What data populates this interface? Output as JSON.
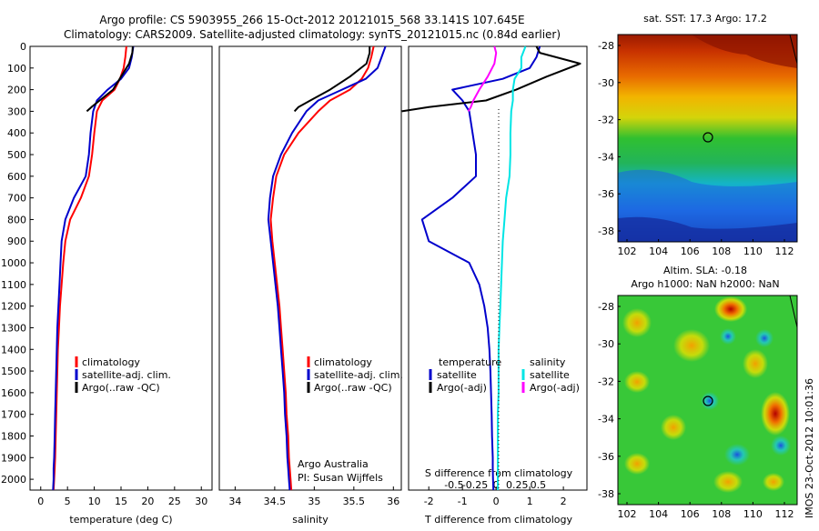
{
  "title": {
    "line1": "Argo profile: CS 5903955_266 15-Oct-2012 20121015_568 33.141S 107.645E",
    "line2": "Climatology: CARS2009. Satellite-adjusted climatology: synTS_20121015.nc (0.84d earlier)"
  },
  "depth_ticks": [
    0,
    100,
    200,
    300,
    400,
    500,
    600,
    700,
    800,
    900,
    1000,
    1100,
    1200,
    1300,
    1400,
    1500,
    1600,
    1700,
    1800,
    1900,
    2000
  ],
  "colors": {
    "climatology": "#ff0000",
    "satellite": "#0000cc",
    "argo": "#000000",
    "sal_sat": "#00e5e5",
    "sal_argo": "#ff00ff"
  },
  "temperature_panel": {
    "xlabel": "temperature (deg C)",
    "xticks": [
      0,
      5,
      10,
      15,
      20,
      25,
      30
    ],
    "legend": [
      "climatology",
      "satellite-adj. clim.",
      "Argo(..raw -QC)"
    ]
  },
  "salinity_panel": {
    "xlabel": "salinity",
    "xticks": [
      "34",
      "34.5",
      "35",
      "35.5",
      "36"
    ],
    "legend": [
      "climatology",
      "satellite-adj. clim.",
      "Argo(..raw -QC)"
    ],
    "note1": "Argo Australia",
    "note2": "PI: Susan Wijffels"
  },
  "diff_panel": {
    "xlabel": "T difference from climatology",
    "top_label": "S difference from climatology",
    "t_ticks": [
      "-2",
      "-1",
      "0",
      "1",
      "2"
    ],
    "s_ticks": [
      "-0.5",
      "-0.25",
      "0",
      "0.25",
      "0.5"
    ],
    "legend_t_title": "temperature",
    "legend_t": [
      "satellite",
      "Argo(-adj)"
    ],
    "legend_s_title": "salinity",
    "legend_s": [
      "satellite",
      "Argo(-adj)"
    ]
  },
  "map_sst": {
    "title": "sat. SST: 17.3 Argo: 17.2",
    "yticks": [
      "-28",
      "-30",
      "-32",
      "-34",
      "-36",
      "-38"
    ],
    "xticks": [
      "102",
      "104",
      "106",
      "108",
      "110",
      "112"
    ]
  },
  "map_sla": {
    "title1": "Altim. SLA: -0.18",
    "title2": "Argo h1000: NaN h2000: NaN",
    "yticks": [
      "-28",
      "-30",
      "-32",
      "-34",
      "-36",
      "-38"
    ],
    "xticks": [
      "102",
      "104",
      "106",
      "108",
      "110",
      "112"
    ]
  },
  "footer": "IMOS 23-Oct-2012 10:01:36",
  "chart_data": [
    {
      "type": "line",
      "title": "",
      "xlabel": "temperature (deg C)",
      "ylabel": "",
      "xlim": [
        -2,
        32
      ],
      "ylim": [
        2050,
        0
      ],
      "series": [
        {
          "name": "climatology",
          "x": [
            16.0,
            15.8,
            15.5,
            14.8,
            13.8,
            11.5,
            10.5,
            10.0,
            9.6,
            9.0,
            7.5,
            5.5,
            4.6,
            4.2,
            3.9,
            3.6,
            3.4,
            3.2,
            3.1,
            3.0,
            2.9,
            2.8,
            2.7,
            2.6,
            2.5,
            2.4
          ],
          "y": [
            0,
            50,
            100,
            150,
            200,
            250,
            300,
            400,
            500,
            600,
            700,
            800,
            900,
            1000,
            1100,
            1200,
            1300,
            1400,
            1500,
            1600,
            1700,
            1800,
            1900,
            1950,
            2000,
            2050
          ]
        },
        {
          "name": "satellite-adj. clim.",
          "x": [
            17.3,
            17.0,
            16.5,
            15.0,
            12.5,
            10.5,
            9.8,
            9.3,
            9.0,
            8.4,
            6.2,
            4.6,
            3.9,
            3.7,
            3.5,
            3.3,
            3.1,
            3.0,
            2.9,
            2.8,
            2.7,
            2.6,
            2.5,
            2.4,
            2.4,
            2.3
          ],
          "y": [
            0,
            50,
            100,
            150,
            200,
            250,
            300,
            400,
            500,
            600,
            700,
            800,
            900,
            1000,
            1100,
            1200,
            1300,
            1400,
            1500,
            1600,
            1700,
            1800,
            1900,
            1950,
            2000,
            2050
          ]
        },
        {
          "name": "Argo(..raw -QC)",
          "x": [
            17.2,
            17.1,
            16.5,
            15.0,
            13.5,
            11.0,
            9.5,
            8.6
          ],
          "y": [
            0,
            30,
            80,
            140,
            200,
            250,
            280,
            300
          ]
        }
      ]
    },
    {
      "type": "line",
      "title": "",
      "xlabel": "salinity",
      "ylabel": "",
      "xlim": [
        33.8,
        36.1
      ],
      "ylim": [
        2050,
        0
      ],
      "series": [
        {
          "name": "climatology",
          "x": [
            35.75,
            35.72,
            35.68,
            35.6,
            35.45,
            35.2,
            35.05,
            34.8,
            34.62,
            34.52,
            34.48,
            34.45,
            34.47,
            34.5,
            34.53,
            34.56,
            34.58,
            34.6,
            34.62,
            34.64,
            34.65,
            34.67,
            34.68,
            34.69,
            34.7,
            34.71
          ],
          "y": [
            0,
            50,
            100,
            150,
            200,
            250,
            300,
            400,
            500,
            600,
            700,
            800,
            900,
            1000,
            1100,
            1200,
            1300,
            1400,
            1500,
            1600,
            1700,
            1800,
            1900,
            1950,
            2000,
            2050
          ]
        },
        {
          "name": "satellite-adj. clim.",
          "x": [
            35.9,
            35.85,
            35.8,
            35.65,
            35.35,
            35.05,
            34.9,
            34.72,
            34.58,
            34.48,
            34.44,
            34.42,
            34.45,
            34.48,
            34.51,
            34.54,
            34.56,
            34.58,
            34.6,
            34.62,
            34.63,
            34.65,
            34.66,
            34.67,
            34.68,
            34.69
          ],
          "y": [
            0,
            50,
            100,
            150,
            200,
            250,
            300,
            400,
            500,
            600,
            700,
            800,
            900,
            1000,
            1100,
            1200,
            1300,
            1400,
            1500,
            1600,
            1700,
            1800,
            1900,
            1950,
            2000,
            2050
          ]
        },
        {
          "name": "Argo(..raw -QC)",
          "x": [
            35.7,
            35.7,
            35.66,
            35.45,
            35.2,
            34.95,
            34.8,
            34.75
          ],
          "y": [
            0,
            30,
            80,
            140,
            200,
            250,
            280,
            300
          ]
        }
      ]
    },
    {
      "type": "line",
      "title": "",
      "xlabel": "T difference from climatology",
      "ylabel": "",
      "xlim": [
        -2.6,
        2.7
      ],
      "ylim": [
        2050,
        0
      ],
      "series": [
        {
          "name": "temperature satellite",
          "x": [
            1.3,
            1.2,
            1.0,
            0.2,
            -1.3,
            -1.0,
            -0.8,
            -0.7,
            -0.6,
            -0.6,
            -1.3,
            -2.2,
            -2.0,
            -0.8,
            -0.5,
            -0.35,
            -0.25,
            -0.2,
            -0.17,
            -0.15,
            -0.13,
            -0.12,
            -0.1,
            -0.1,
            -0.09,
            -0.08
          ],
          "y": [
            0,
            50,
            100,
            150,
            200,
            250,
            300,
            400,
            500,
            600,
            700,
            800,
            900,
            1000,
            1100,
            1200,
            1300,
            1400,
            1500,
            1600,
            1700,
            1800,
            1900,
            1950,
            2000,
            2050
          ]
        },
        {
          "name": "temperature Argo(-adj)",
          "x": [
            1.2,
            1.3,
            2.5,
            1.5,
            0.6,
            -0.3,
            -2.0,
            -2.8
          ],
          "y": [
            0,
            30,
            80,
            140,
            200,
            250,
            280,
            300
          ]
        },
        {
          "name": "salinity satellite",
          "x": [
            0.35,
            0.3,
            0.3,
            0.22,
            0.2,
            0.2,
            0.18,
            0.17,
            0.17,
            0.16,
            0.12,
            0.1,
            0.08,
            0.07,
            0.06,
            0.05,
            0.04,
            0.03,
            0.03,
            0.03,
            0.02,
            0.02,
            0.02,
            0.02,
            0.02,
            0.02
          ],
          "y": [
            0,
            50,
            100,
            150,
            200,
            250,
            300,
            400,
            500,
            600,
            700,
            800,
            900,
            1000,
            1100,
            1200,
            1300,
            1400,
            1500,
            1600,
            1700,
            1800,
            1900,
            1950,
            2000,
            2050
          ]
        },
        {
          "name": "salinity Argo(-adj)",
          "x": [
            -0.02,
            0.0,
            -0.02,
            -0.1,
            -0.2,
            -0.27,
            -0.3,
            -0.33
          ],
          "y": [
            0,
            30,
            80,
            140,
            200,
            250,
            280,
            300
          ]
        }
      ]
    }
  ]
}
